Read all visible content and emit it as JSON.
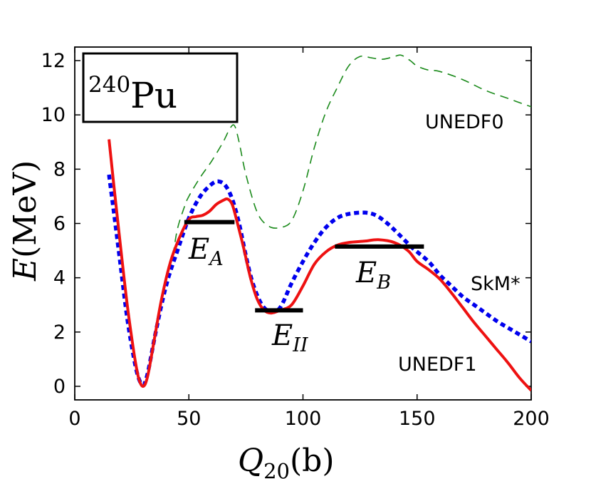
{
  "chart_data": {
    "type": "line",
    "title_box": {
      "mass": "240",
      "element": "Pu"
    },
    "xlabel": {
      "symbol": "Q",
      "subscript": "20",
      "unit": "(b)"
    },
    "ylabel": {
      "symbol": "E",
      "unit": "(MeV)"
    },
    "xlim": [
      0,
      200
    ],
    "ylim": [
      -0.5,
      12.5
    ],
    "xticks": [
      0,
      50,
      100,
      150,
      200
    ],
    "yticks": [
      0,
      2,
      4,
      6,
      8,
      10,
      12
    ],
    "series": [
      {
        "name": "UNEDF0",
        "color": "#1a8a1a",
        "style": "dashed",
        "points": [
          [
            43,
            4.8
          ],
          [
            45,
            5.8
          ],
          [
            48,
            6.6
          ],
          [
            50,
            7.0
          ],
          [
            55,
            7.7
          ],
          [
            60,
            8.3
          ],
          [
            65,
            9.0
          ],
          [
            68,
            9.5
          ],
          [
            70,
            9.6
          ],
          [
            72,
            9.0
          ],
          [
            75,
            7.8
          ],
          [
            80,
            6.4
          ],
          [
            85,
            5.9
          ],
          [
            90,
            5.85
          ],
          [
            95,
            6.1
          ],
          [
            100,
            7.2
          ],
          [
            105,
            8.8
          ],
          [
            110,
            10.1
          ],
          [
            115,
            11.0
          ],
          [
            120,
            11.8
          ],
          [
            125,
            12.15
          ],
          [
            130,
            12.1
          ],
          [
            135,
            12.05
          ],
          [
            140,
            12.15
          ],
          [
            143,
            12.2
          ],
          [
            147,
            12.0
          ],
          [
            150,
            11.8
          ],
          [
            155,
            11.65
          ],
          [
            160,
            11.6
          ],
          [
            170,
            11.3
          ],
          [
            180,
            10.9
          ],
          [
            190,
            10.6
          ],
          [
            200,
            10.3
          ]
        ]
      },
      {
        "name": "SkM*",
        "color": "#0000ee",
        "style": "dotted",
        "points": [
          [
            15,
            7.8
          ],
          [
            17,
            6.5
          ],
          [
            20,
            4.5
          ],
          [
            23,
            2.5
          ],
          [
            26,
            1.0
          ],
          [
            28,
            0.3
          ],
          [
            30,
            0.05
          ],
          [
            32,
            0.5
          ],
          [
            35,
            1.8
          ],
          [
            38,
            3.0
          ],
          [
            41,
            4.0
          ],
          [
            45,
            5.0
          ],
          [
            50,
            6.2
          ],
          [
            55,
            7.0
          ],
          [
            60,
            7.45
          ],
          [
            63,
            7.55
          ],
          [
            66,
            7.4
          ],
          [
            69,
            6.9
          ],
          [
            72,
            6.0
          ],
          [
            75,
            4.8
          ],
          [
            78,
            3.8
          ],
          [
            82,
            3.0
          ],
          [
            86,
            2.75
          ],
          [
            90,
            2.9
          ],
          [
            95,
            3.8
          ],
          [
            100,
            4.6
          ],
          [
            105,
            5.3
          ],
          [
            110,
            5.85
          ],
          [
            115,
            6.2
          ],
          [
            120,
            6.35
          ],
          [
            127,
            6.4
          ],
          [
            132,
            6.3
          ],
          [
            137,
            6.0
          ],
          [
            142,
            5.6
          ],
          [
            148,
            5.1
          ],
          [
            155,
            4.6
          ],
          [
            160,
            4.1
          ],
          [
            165,
            3.7
          ],
          [
            170,
            3.3
          ],
          [
            175,
            3.0
          ],
          [
            180,
            2.7
          ],
          [
            185,
            2.4
          ],
          [
            190,
            2.15
          ],
          [
            195,
            1.9
          ],
          [
            200,
            1.65
          ]
        ]
      },
      {
        "name": "UNEDF1",
        "color": "#ee1111",
        "style": "solid",
        "points": [
          [
            15,
            9.1
          ],
          [
            17,
            7.5
          ],
          [
            20,
            5.2
          ],
          [
            23,
            3.0
          ],
          [
            26,
            1.2
          ],
          [
            28,
            0.3
          ],
          [
            30,
            0.0
          ],
          [
            32,
            0.4
          ],
          [
            35,
            1.8
          ],
          [
            38,
            3.2
          ],
          [
            42,
            4.6
          ],
          [
            46,
            5.5
          ],
          [
            50,
            6.15
          ],
          [
            53,
            6.25
          ],
          [
            56,
            6.3
          ],
          [
            59,
            6.45
          ],
          [
            62,
            6.7
          ],
          [
            65,
            6.85
          ],
          [
            67,
            6.9
          ],
          [
            69,
            6.7
          ],
          [
            71,
            6.1
          ],
          [
            74,
            5.1
          ],
          [
            77,
            4.0
          ],
          [
            80,
            3.2
          ],
          [
            83,
            2.8
          ],
          [
            86,
            2.7
          ],
          [
            90,
            2.8
          ],
          [
            95,
            3.0
          ],
          [
            100,
            3.7
          ],
          [
            105,
            4.5
          ],
          [
            110,
            4.95
          ],
          [
            115,
            5.2
          ],
          [
            120,
            5.3
          ],
          [
            127,
            5.35
          ],
          [
            133,
            5.4
          ],
          [
            140,
            5.3
          ],
          [
            146,
            5.0
          ],
          [
            150,
            4.6
          ],
          [
            155,
            4.3
          ],
          [
            160,
            3.95
          ],
          [
            165,
            3.45
          ],
          [
            170,
            2.9
          ],
          [
            175,
            2.35
          ],
          [
            180,
            1.85
          ],
          [
            185,
            1.35
          ],
          [
            190,
            0.85
          ],
          [
            195,
            0.3
          ],
          [
            200,
            -0.15
          ]
        ]
      }
    ],
    "levels": [
      {
        "label": "E",
        "sub": "A",
        "y": 6.05,
        "x0": 48,
        "x1": 70
      },
      {
        "label": "E",
        "sub": "II",
        "y": 2.8,
        "x0": 79,
        "x1": 100
      },
      {
        "label": "E",
        "sub": "B",
        "y": 5.15,
        "x0": 114,
        "x1": 153
      }
    ],
    "annotations": {
      "unedf0": "UNEDF0",
      "skm": "SkM*",
      "unedf1": "UNEDF1"
    }
  }
}
